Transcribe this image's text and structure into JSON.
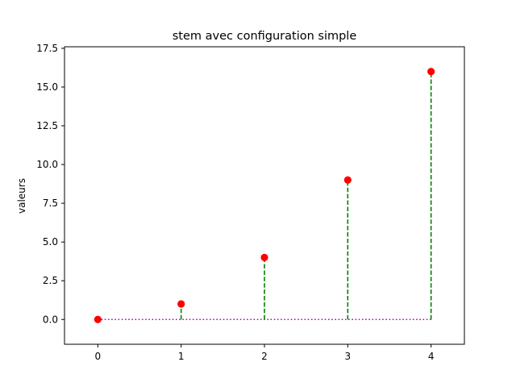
{
  "chart_data": {
    "type": "stem",
    "title": "stem avec configuration simple",
    "xlabel": "",
    "ylabel": "valeurs",
    "x": [
      0,
      1,
      2,
      3,
      4
    ],
    "y": [
      0,
      1,
      4,
      9,
      16
    ],
    "xlim": [
      -0.4,
      4.4
    ],
    "ylim": [
      -1.6,
      17.6
    ],
    "xticks": [
      0,
      1,
      2,
      3,
      4
    ],
    "xtick_labels": [
      "0",
      "1",
      "2",
      "3",
      "4"
    ],
    "yticks": [
      0,
      2.5,
      5,
      7.5,
      10,
      12.5,
      15,
      17.5
    ],
    "ytick_labels": [
      "0.0",
      "2.5",
      "5.0",
      "7.5",
      "10.0",
      "12.5",
      "15.0",
      "17.5"
    ],
    "baseline": 0,
    "grid": false,
    "colors": {
      "marker": "#ff0000",
      "stem": "#008000",
      "baseline": "#bf00bf"
    },
    "styles": {
      "stem_line": "dashed",
      "baseline_line": "dotted",
      "marker": "circle"
    }
  }
}
